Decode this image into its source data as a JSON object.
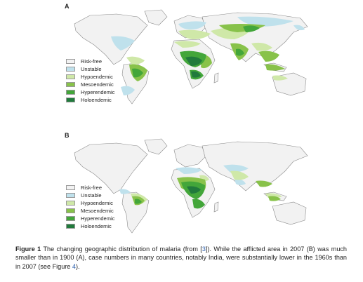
{
  "panels": [
    {
      "label": "A",
      "legend": [
        {
          "label": "Risk-free",
          "color": "#f2f2f2"
        },
        {
          "label": "Unstable",
          "color": "#bfe1ec"
        },
        {
          "label": "Hypoendemic",
          "color": "#cfe8a8"
        },
        {
          "label": "Mesoendemic",
          "color": "#88c24a"
        },
        {
          "label": "Hyperendemic",
          "color": "#43a63a"
        },
        {
          "label": "Holoendemic",
          "color": "#217a3c"
        }
      ]
    },
    {
      "label": "B",
      "legend": [
        {
          "label": "Risk-free",
          "color": "#f2f2f2"
        },
        {
          "label": "Unstable",
          "color": "#bfe1ec"
        },
        {
          "label": "Hypoendemic",
          "color": "#cfe8a8"
        },
        {
          "label": "Mesoendemic",
          "color": "#88c24a"
        },
        {
          "label": "Hyperendemic",
          "color": "#43a63a"
        },
        {
          "label": "Holoendemic",
          "color": "#217a3c"
        }
      ]
    }
  ],
  "caption": {
    "label": "Figure 1",
    "text_1": "The changing geographic distribution of malaria (from [",
    "ref_1": "3",
    "text_2": "]). While the afflicted area in 2007 (B) was much smaller than in 1900 (A), case numbers in many countries, notably India, were substantially lower in the 1960s than in 2007 (see Figure ",
    "ref_2": "4",
    "text_3": ")."
  },
  "colors": {
    "land": "#f2f2f2",
    "outline": "#8a8a8a",
    "reference_link": "#2b5fad"
  }
}
